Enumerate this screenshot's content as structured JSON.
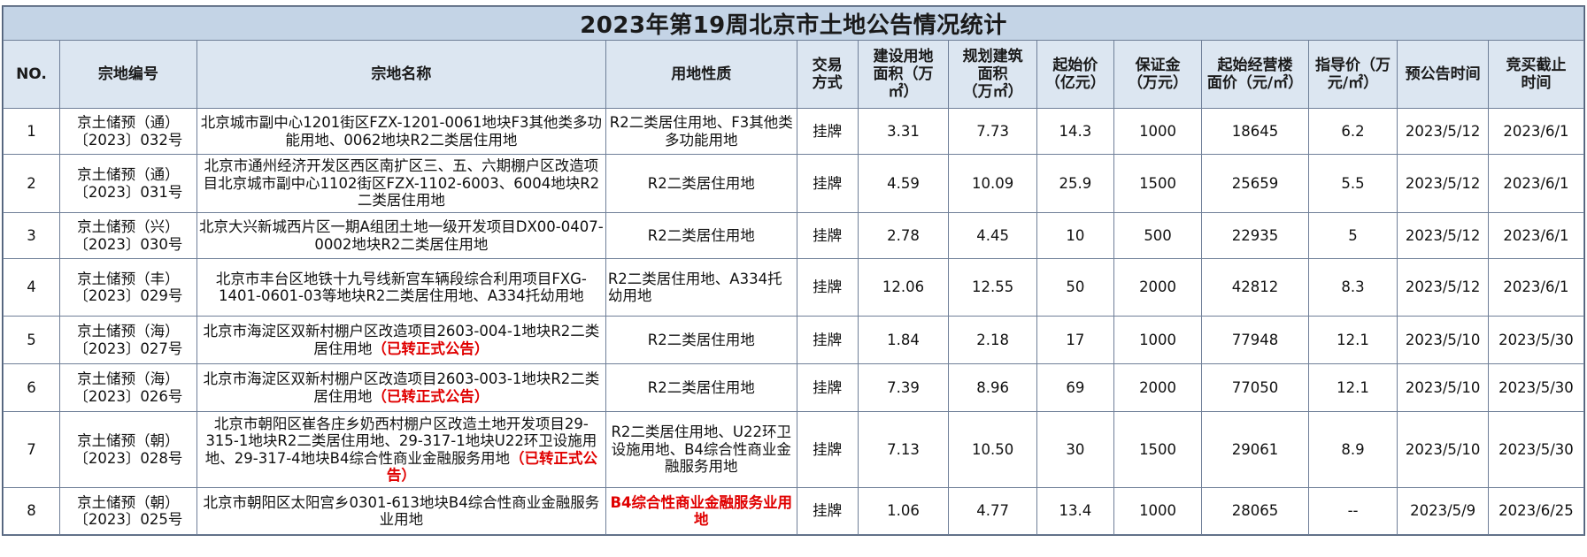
{
  "title": "2023年第19周北京市土地公告情况统计",
  "headers": {
    "no": "NO.",
    "code": "宗地编号",
    "name": "宗地名称",
    "nature": "用地性质",
    "trade": [
      "交易",
      "方式"
    ],
    "area": [
      "建设用地",
      "面积（万",
      "㎡）"
    ],
    "build": [
      "规划建筑",
      "面积",
      "（万㎡）"
    ],
    "start_price": [
      "起始价",
      "（亿元）"
    ],
    "deposit": [
      "保证金",
      "（万元）"
    ],
    "floor_price": [
      "起始经营楼",
      "面价（元/㎡）"
    ],
    "guide_price": [
      "指导价（万",
      "元/㎡）"
    ],
    "pre_time": "预公告时间",
    "deadline": [
      "竞买截止",
      "时间"
    ]
  },
  "rows": [
    {
      "no": "1",
      "code": [
        "京土储预（通）",
        "〔2023〕032号"
      ],
      "name": "北京城市副中心1201街区FZX-1201-0061地块F3其他类多功能用地、0062地块R2二类居住用地",
      "name_note": "",
      "nature": "R2二类居住用地、F3其他类多功能用地",
      "nature_red": false,
      "trade": "挂牌",
      "area": "3.31",
      "build": "7.73",
      "start_price": "14.3",
      "deposit": "1000",
      "floor_price": "18645",
      "guide_price": "6.2",
      "pre_time": "2023/5/12",
      "deadline": "2023/6/1"
    },
    {
      "no": "2",
      "code": [
        "京土储预（通）",
        "〔2023〕031号"
      ],
      "name": "北京市通州经济开发区西区南扩区三、五、六期棚户区改造项目北京城市副中心1102街区FZX-1102-6003、6004地块R2二类居住用地",
      "name_note": "",
      "nature": "R2二类居住用地",
      "nature_red": false,
      "trade": "挂牌",
      "area": "4.59",
      "build": "10.09",
      "start_price": "25.9",
      "deposit": "1500",
      "floor_price": "25659",
      "guide_price": "5.5",
      "pre_time": "2023/5/12",
      "deadline": "2023/6/1"
    },
    {
      "no": "3",
      "code": [
        "京土储预（兴）",
        "〔2023〕030号"
      ],
      "name": "北京大兴新城西片区一期A组团土地一级开发项目DX00-0407-0002地块R2二类居住用地",
      "name_note": "",
      "nature": "R2二类居住用地",
      "nature_red": false,
      "trade": "挂牌",
      "area": "2.78",
      "build": "4.45",
      "start_price": "10",
      "deposit": "500",
      "floor_price": "22935",
      "guide_price": "5",
      "pre_time": "2023/5/12",
      "deadline": "2023/6/1"
    },
    {
      "no": "4",
      "code": [
        "京土储预（丰）",
        "〔2023〕029号"
      ],
      "name": "北京市丰台区地铁十九号线新宫车辆段综合利用项目FXG-1401-0601-03等地块R2二类居住用地、A334托幼用地",
      "name_note": "",
      "nature": "R2二类居住用地、A334托幼用地",
      "nature_red": false,
      "trade": "挂牌",
      "area": "12.06",
      "build": "12.55",
      "start_price": "50",
      "deposit": "2000",
      "floor_price": "42812",
      "guide_price": "8.3",
      "pre_time": "2023/5/12",
      "deadline": "2023/6/1"
    },
    {
      "no": "5",
      "code": [
        "京土储预（海）",
        "〔2023〕027号"
      ],
      "name": "北京市海淀区双新村棚户区改造项目2603-004-1地块R2二类居住用地",
      "name_note": "（已转正式公告）",
      "nature": "R2二类居住用地",
      "nature_red": false,
      "trade": "挂牌",
      "area": "1.84",
      "build": "2.18",
      "start_price": "17",
      "deposit": "1000",
      "floor_price": "77948",
      "guide_price": "12.1",
      "pre_time": "2023/5/10",
      "deadline": "2023/5/30"
    },
    {
      "no": "6",
      "code": [
        "京土储预（海）",
        "〔2023〕026号"
      ],
      "name": "北京市海淀区双新村棚户区改造项目2603-003-1地块R2二类居住用地",
      "name_note": "（已转正式公告）",
      "nature": "R2二类居住用地",
      "nature_red": false,
      "trade": "挂牌",
      "area": "7.39",
      "build": "8.96",
      "start_price": "69",
      "deposit": "2000",
      "floor_price": "77050",
      "guide_price": "12.1",
      "pre_time": "2023/5/10",
      "deadline": "2023/5/30"
    },
    {
      "no": "7",
      "code": [
        "京土储预（朝）",
        "〔2023〕028号"
      ],
      "name": "北京市朝阳区崔各庄乡奶西村棚户区改造土地开发项目29-315-1地块R2二类居住用地、29-317-1地块U22环卫设施用地、29-317-4地块B4综合性商业金融服务用地",
      "name_note": "（已转正式公告）",
      "nature": "R2二类居住用地、U22环卫设施用地、B4综合性商业金融服务用地",
      "nature_red": false,
      "trade": "挂牌",
      "area": "7.13",
      "build": "10.50",
      "start_price": "30",
      "deposit": "1500",
      "floor_price": "29061",
      "guide_price": "8.9",
      "pre_time": "2023/5/10",
      "deadline": "2023/5/30"
    },
    {
      "no": "8",
      "code": [
        "京土储预（朝）",
        "〔2023〕025号"
      ],
      "name": "北京市朝阳区太阳宫乡0301-613地块B4综合性商业金融服务业用地",
      "name_note": "",
      "nature": "B4综合性商业金融服务业用地",
      "nature_red": true,
      "trade": "挂牌",
      "area": "1.06",
      "build": "4.77",
      "start_price": "13.4",
      "deposit": "1000",
      "floor_price": "28065",
      "guide_price": "--",
      "pre_time": "2023/5/9",
      "deadline": "2023/6/25"
    }
  ],
  "colors": {
    "title_bg": "#c4d4e6",
    "header_bg": "#dce6f1",
    "border": "#6f7f98",
    "highlight_red": "#e00000"
  }
}
